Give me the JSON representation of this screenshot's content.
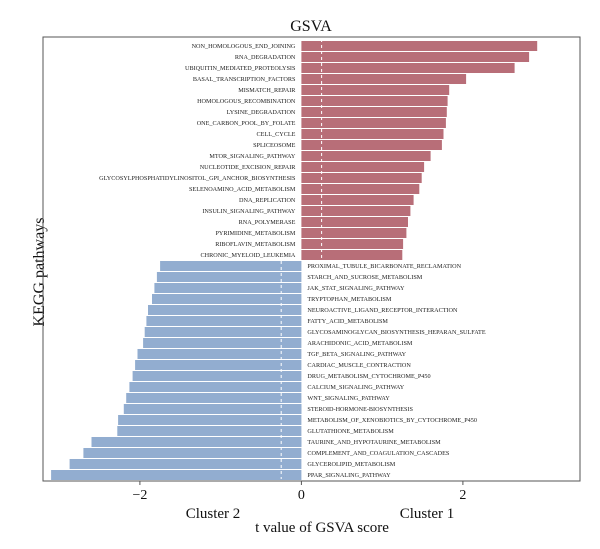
{
  "chart_data": {
    "type": "bar",
    "orientation": "horizontal",
    "title": "GSVA",
    "xlabel": "t value of GSVA score",
    "ylabel": "KEGG pathways",
    "xlim": [
      -3.2,
      3.45
    ],
    "xticks": [
      {
        "value": -2,
        "label": "−2"
      },
      {
        "value": 0,
        "label": "0"
      },
      {
        "value": 2,
        "label": "2"
      }
    ],
    "reference_lines": [
      -0.25,
      0.25
    ],
    "grid": false,
    "group_labels": {
      "negative": "Cluster 2",
      "positive": "Cluster 1"
    },
    "colors": {
      "positive": "#b86e78",
      "negative": "#92add0",
      "ref_line": "#ffffff"
    },
    "categories": [
      "NON_HOMOLOGOUS_END_JOINING",
      "RNA_DEGRADATION",
      "UBIQUITIN_MEDIATED_PROTEOLYSIS",
      "BASAL_TRANSCRIPTION_FACTORS",
      "MISMATCH_REPAIR",
      "HOMOLOGOUS_RECOMBINATION",
      "LYSINE_DEGRADATION",
      "ONE_CARBON_POOL_BY_FOLATE",
      "CELL_CYCLE",
      "SPLICEOSOME",
      "MTOR_SIGNALING_PATHWAY",
      "NUCLEOTIDE_EXCISION_REPAIR",
      "GLYCOSYLPHOSPHATIDYLINOSITOL_GPI_ANCHOR_BIOSYNTHESIS",
      "SELENOAMINO_ACID_METABOLISM",
      "DNA_REPLICATION",
      "INSULIN_SIGNALING_PATHWAY",
      "RNA_POLYMERASE",
      "PYRIMIDINE_METABOLISM",
      "RIBOFLAVIN_METABOLISM",
      "CHRONIC_MYELOID_LEUKEMIA",
      "PROXIMAL_TUBULE_BICARBONATE_RECLAMATION",
      "STARCH_AND_SUCROSE_METABOLISM",
      "JAK_STAT_SIGNALING_PATHWAY",
      "TRYPTOPHAN_METABOLISM",
      "NEUROACTIVE_LIGAND_RECEPTOR_INTERACTION",
      "FATTY_ACID_METABOLISM",
      "GLYCOSAMINOGLYCAN_BIOSYNTHESIS_HEPARAN_SULFATE",
      "ARACHIDONIC_ACID_METABOLISM",
      "TGF_BETA_SIGNALING_PATHWAY",
      "CARDIAC_MUSCLE_CONTRACTION",
      "DRUG_METABOLISM_CYTOCHROME_P450",
      "CALCIUM_SIGNALING_PATHWAY",
      "WNT_SIGNALING_PATHWAY",
      "STEROID-HORMONE-BIOSYNTHESIS",
      "METABOLISM_OF_XENOBIOTICS_BY_CYTOCHROME_P450",
      "GLUTATHIONE_METABOLISM",
      "TAURINE_AND_HYPOTAURINE_METABOLISM",
      "COMPLEMENT_AND_COAGULATION_CASCADES",
      "GLYCEROLIPID_METABOLISM",
      "PPAR_SIGNALING_PATHWAY"
    ],
    "values": [
      2.92,
      2.82,
      2.64,
      2.04,
      1.83,
      1.81,
      1.8,
      1.79,
      1.76,
      1.74,
      1.6,
      1.52,
      1.49,
      1.46,
      1.39,
      1.35,
      1.32,
      1.3,
      1.26,
      1.25,
      -1.75,
      -1.79,
      -1.82,
      -1.85,
      -1.9,
      -1.92,
      -1.94,
      -1.96,
      -2.03,
      -2.06,
      -2.09,
      -2.13,
      -2.17,
      -2.2,
      -2.27,
      -2.28,
      -2.6,
      -2.7,
      -2.87,
      -3.1
    ]
  }
}
